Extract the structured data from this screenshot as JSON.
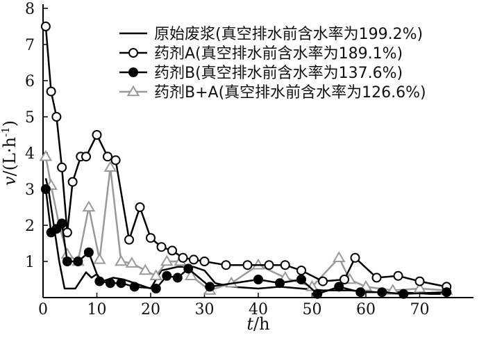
{
  "chart_data": {
    "type": "line",
    "xlabel": {
      "italic": "t",
      "rest": "/h"
    },
    "ylabel": {
      "italic": "v",
      "rest": "/(L·h",
      "sup": "-1",
      "close": ")"
    },
    "xlim": [
      0,
      80
    ],
    "ylim": [
      0,
      8
    ],
    "xticks": [
      0,
      10,
      20,
      30,
      40,
      50,
      60,
      70
    ],
    "yticks": [
      1,
      2,
      3,
      4,
      5,
      6,
      7,
      8
    ],
    "x_tick_labels": [
      "0",
      "10",
      "20",
      "30",
      "40",
      "50",
      "60",
      "70"
    ],
    "y_tick_labels": [
      "1",
      "2",
      "3",
      "4",
      "5",
      "6",
      "7",
      "8"
    ],
    "grid": false,
    "legend_position": "top-right",
    "series": [
      {
        "name": "原始废浆(真空排水前含水率为199.2%)",
        "color": "#000000",
        "marker": "none",
        "points": [
          [
            0.5,
            3.3
          ],
          [
            1,
            3.0
          ],
          [
            2,
            2.0
          ],
          [
            3,
            1.0
          ],
          [
            4,
            0.25
          ],
          [
            6,
            0.25
          ],
          [
            8,
            0.7
          ],
          [
            9,
            0.55
          ],
          [
            10,
            0.65
          ],
          [
            11,
            0.45
          ],
          [
            13,
            0.55
          ],
          [
            15,
            0.5
          ],
          [
            17,
            0.4
          ],
          [
            20,
            0.25
          ],
          [
            22,
            0.75
          ],
          [
            25,
            0.85
          ],
          [
            28,
            0.85
          ],
          [
            30,
            0.75
          ],
          [
            32,
            0.4
          ],
          [
            35,
            0.3
          ],
          [
            40,
            0.25
          ],
          [
            44,
            0.3
          ],
          [
            48,
            0.25
          ],
          [
            52,
            0.2
          ],
          [
            57,
            0.2
          ],
          [
            62,
            0.15
          ],
          [
            66,
            0.15
          ],
          [
            72,
            0.1
          ],
          [
            75,
            0.1
          ]
        ]
      },
      {
        "name": "药剂A(真空排水前含水率为189.1%)",
        "color": "#000000",
        "marker": "open-circle",
        "points": [
          [
            0.5,
            7.5
          ],
          [
            1.5,
            5.7
          ],
          [
            2.5,
            5.0
          ],
          [
            3.5,
            3.6
          ],
          [
            4.5,
            1.8
          ],
          [
            5.5,
            3.2
          ],
          [
            7,
            3.9
          ],
          [
            8,
            3.9
          ],
          [
            10,
            4.5
          ],
          [
            12,
            3.9
          ],
          [
            13.5,
            3.8
          ],
          [
            16,
            1.6
          ],
          [
            18,
            2.5
          ],
          [
            20,
            1.65
          ],
          [
            22,
            1.4
          ],
          [
            24,
            1.3
          ],
          [
            26,
            1.1
          ],
          [
            28,
            1.05
          ],
          [
            30,
            1.0
          ],
          [
            34,
            0.9
          ],
          [
            38,
            0.9
          ],
          [
            42,
            0.9
          ],
          [
            45,
            0.9
          ],
          [
            48,
            0.75
          ],
          [
            52,
            0.45
          ],
          [
            56,
            0.5
          ],
          [
            58,
            1.1
          ],
          [
            62,
            0.55
          ],
          [
            66,
            0.6
          ],
          [
            70,
            0.45
          ],
          [
            75,
            0.3
          ]
        ]
      },
      {
        "name": "药剂B(真空排水前含水率为137.6%)",
        "color": "#000000",
        "marker": "filled-circle",
        "points": [
          [
            0.5,
            3.0
          ],
          [
            1.5,
            1.8
          ],
          [
            2.5,
            1.9
          ],
          [
            3.5,
            2.05
          ],
          [
            4.5,
            1.0
          ],
          [
            6.5,
            1.0
          ],
          [
            8.5,
            1.25
          ],
          [
            10.5,
            0.45
          ],
          [
            12.5,
            0.4
          ],
          [
            14.5,
            0.4
          ],
          [
            17,
            0.3
          ],
          [
            21,
            0.25
          ],
          [
            23,
            0.6
          ],
          [
            25,
            0.55
          ],
          [
            27,
            0.8
          ],
          [
            31,
            0.3
          ],
          [
            40,
            0.5
          ],
          [
            44,
            0.4
          ],
          [
            48,
            0.5
          ],
          [
            51,
            0.1
          ],
          [
            55,
            0.3
          ],
          [
            59,
            0.15
          ],
          [
            63,
            0.15
          ],
          [
            67,
            0.1
          ],
          [
            75,
            0.15
          ]
        ]
      },
      {
        "name": "药剂B+A(真空排水前含水率为126.6%)",
        "color": "#999999",
        "marker": "open-triangle",
        "points": [
          [
            0.5,
            3.9
          ],
          [
            1.5,
            3.1
          ],
          [
            3,
            2.0
          ],
          [
            4.5,
            1.2
          ],
          [
            6.5,
            1.0
          ],
          [
            8.5,
            2.5
          ],
          [
            10.5,
            1.05
          ],
          [
            12.5,
            3.6
          ],
          [
            14.5,
            1.0
          ],
          [
            16.5,
            0.95
          ],
          [
            19,
            0.75
          ],
          [
            21,
            0.6
          ],
          [
            23,
            1.0
          ],
          [
            25.5,
            1.0
          ],
          [
            27.5,
            0.6
          ],
          [
            31,
            0.2
          ],
          [
            35,
            0.4
          ],
          [
            40,
            0.9
          ],
          [
            45,
            0.55
          ],
          [
            50,
            0.3
          ],
          [
            55,
            1.1
          ],
          [
            57,
            0.5
          ],
          [
            60,
            0.3
          ],
          [
            65,
            0.2
          ],
          [
            70,
            0.25
          ],
          [
            75,
            0.2
          ]
        ]
      }
    ]
  }
}
